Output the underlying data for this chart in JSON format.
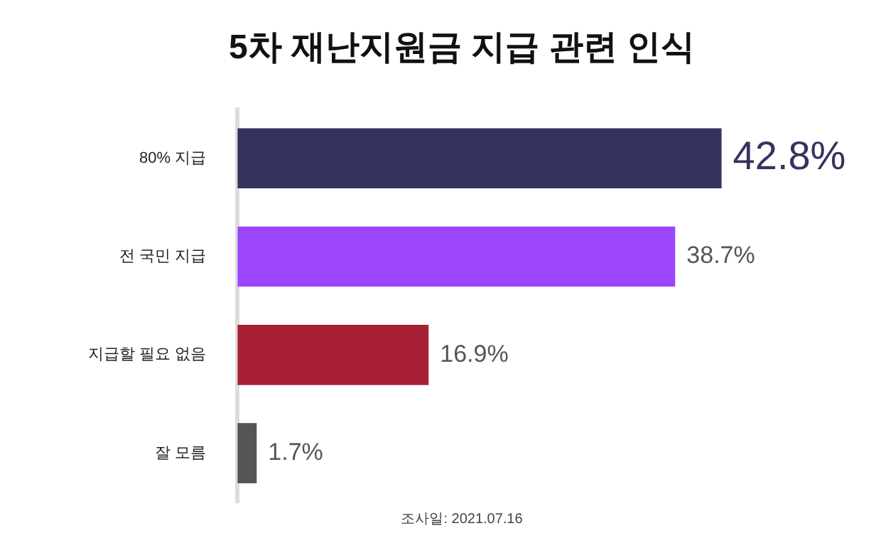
{
  "chart_data": {
    "type": "bar",
    "orientation": "horizontal",
    "title": "5차 재난지원금 지급 관련 인식",
    "categories": [
      "80% 지급",
      "전 국민 지급",
      "지급할 필요 없음",
      "잘 모름"
    ],
    "values": [
      42.8,
      38.7,
      16.9,
      1.7
    ],
    "colors": [
      "#35335e",
      "#9b45fd",
      "#a82035",
      "#555555"
    ],
    "value_labels": [
      "42.8%",
      "38.7%",
      "16.9%",
      "1.7%"
    ],
    "annotations": [
      "조사일: 2021.07.16"
    ],
    "legend": false
  }
}
